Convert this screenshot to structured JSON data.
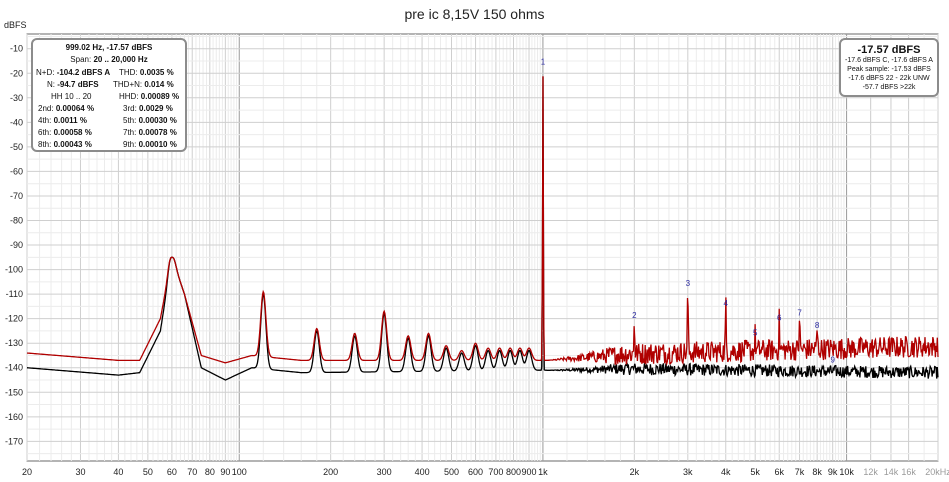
{
  "chart_data": {
    "type": "line",
    "title": "pre ic 8,15V 150 ohms",
    "ylabel": "dBFS",
    "x_scale": "log",
    "xlim": [
      20,
      20000
    ],
    "ylim": [
      -178,
      -4
    ],
    "y_ticks": [
      -10,
      -20,
      -30,
      -40,
      -50,
      -60,
      -70,
      -80,
      -90,
      -100,
      -110,
      -120,
      -130,
      -140,
      -150,
      -160,
      -170
    ],
    "x_ticks": [
      {
        "v": 20,
        "l": "20"
      },
      {
        "v": 30,
        "l": "30"
      },
      {
        "v": 40,
        "l": "40"
      },
      {
        "v": 50,
        "l": "50"
      },
      {
        "v": 60,
        "l": "60"
      },
      {
        "v": 70,
        "l": "70"
      },
      {
        "v": 80,
        "l": "80"
      },
      {
        "v": 90,
        "l": "90"
      },
      {
        "v": 100,
        "l": "100"
      },
      {
        "v": 200,
        "l": "200"
      },
      {
        "v": 300,
        "l": "300"
      },
      {
        "v": 400,
        "l": "400"
      },
      {
        "v": 500,
        "l": "500"
      },
      {
        "v": 600,
        "l": "600"
      },
      {
        "v": 700,
        "l": "700"
      },
      {
        "v": 800,
        "l": "800"
      },
      {
        "v": 900,
        "l": "900"
      },
      {
        "v": 1000,
        "l": "1k"
      },
      {
        "v": 2000,
        "l": "2k"
      },
      {
        "v": 3000,
        "l": "3k"
      },
      {
        "v": 4000,
        "l": "4k"
      },
      {
        "v": 5000,
        "l": "5k"
      },
      {
        "v": 6000,
        "l": "6k"
      },
      {
        "v": 7000,
        "l": "7k"
      },
      {
        "v": 8000,
        "l": "8k"
      },
      {
        "v": 9000,
        "l": "9k"
      },
      {
        "v": 10000,
        "l": "10k"
      },
      {
        "v": 12000,
        "l": "12k"
      },
      {
        "v": 14000,
        "l": "14k"
      },
      {
        "v": 16000,
        "l": "16k"
      },
      {
        "v": 20000,
        "l": "20kHz"
      }
    ],
    "series": [
      {
        "color": "#000000",
        "floor": [
          [
            20,
            -140
          ],
          [
            40,
            -143
          ],
          [
            47,
            -142
          ],
          [
            55,
            -125
          ],
          [
            60,
            -95
          ],
          [
            66,
            -110
          ],
          [
            75,
            -140
          ],
          [
            90,
            -145
          ],
          [
            110,
            -140
          ],
          [
            160,
            -142
          ],
          [
            1000,
            -141
          ],
          [
            20000,
            -143
          ]
        ],
        "peaks": [
          [
            60,
            -95
          ],
          [
            120,
            -110
          ],
          [
            180,
            -125
          ],
          [
            240,
            -127
          ],
          [
            300,
            -118
          ],
          [
            360,
            -128
          ],
          [
            420,
            -127
          ],
          [
            480,
            -132
          ],
          [
            540,
            -134
          ],
          [
            600,
            -131
          ],
          [
            660,
            -133
          ],
          [
            720,
            -133
          ],
          [
            780,
            -133
          ],
          [
            840,
            -133
          ],
          [
            900,
            -133
          ],
          [
            1000,
            -17.57
          ]
        ]
      },
      {
        "color": "#b00000",
        "floor": [
          [
            20,
            -134
          ],
          [
            40,
            -137
          ],
          [
            47,
            -137
          ],
          [
            55,
            -120
          ],
          [
            60,
            -95
          ],
          [
            66,
            -110
          ],
          [
            75,
            -135
          ],
          [
            90,
            -138
          ],
          [
            110,
            -135
          ],
          [
            160,
            -137
          ],
          [
            1000,
            -137
          ],
          [
            20000,
            -133
          ]
        ],
        "peaks": [
          [
            60,
            -95
          ],
          [
            120,
            -109
          ],
          [
            180,
            -124
          ],
          [
            240,
            -126
          ],
          [
            300,
            -117
          ],
          [
            360,
            -127
          ],
          [
            420,
            -126
          ],
          [
            480,
            -131
          ],
          [
            540,
            -133
          ],
          [
            600,
            -130
          ],
          [
            660,
            -132
          ],
          [
            720,
            -132
          ],
          [
            780,
            -132
          ],
          [
            840,
            -132
          ],
          [
            900,
            -132
          ],
          [
            1000,
            -17.57
          ],
          [
            2000,
            -121
          ],
          [
            3000,
            -108
          ],
          [
            4000,
            -116
          ],
          [
            5000,
            -128
          ],
          [
            6000,
            -122
          ],
          [
            7000,
            -120
          ],
          [
            8000,
            -125
          ],
          [
            9000,
            -139
          ]
        ]
      }
    ],
    "harmonic_markers": [
      {
        "n": "1",
        "f": 1000,
        "db": -17.57
      },
      {
        "n": "2",
        "f": 2000,
        "db": -121
      },
      {
        "n": "3",
        "f": 3000,
        "db": -108
      },
      {
        "n": "4",
        "f": 4000,
        "db": -116
      },
      {
        "n": "5",
        "f": 5000,
        "db": -128
      },
      {
        "n": "6",
        "f": 6000,
        "db": -122
      },
      {
        "n": "7",
        "f": 7000,
        "db": -120
      },
      {
        "n": "8",
        "f": 8000,
        "db": -125
      },
      {
        "n": "9",
        "f": 9000,
        "db": -139
      }
    ],
    "legend": "none"
  },
  "info": {
    "freq": "999.02 Hz, -17.57 dBFS",
    "span_label": "Span:",
    "span_value": "20 .. 20,000 Hz",
    "nd_label": "N+D:",
    "nd_value": "-104.2 dBFS A",
    "thd_label": "THD:",
    "thd_value": "0.0035 %",
    "n_label": "N:",
    "n_value": "-94.7 dBFS",
    "thdn_label": "THD+N:",
    "thdn_value": "0.014 %",
    "hh_label": "HH 10 .. 20",
    "hhd_label": "HHD:",
    "hhd_value": "0.00089 %",
    "h2_label": "2nd:",
    "h2_value": "0.00064 %",
    "h3_label": "3rd:",
    "h3_value": "0.0029 %",
    "h4_label": "4th:",
    "h4_value": "0.0011 %",
    "h5_label": "5th:",
    "h5_value": "0.00030 %",
    "h6_label": "6th:",
    "h6_value": "0.00058 %",
    "h7_label": "7th:",
    "h7_value": "0.00078 %",
    "h8_label": "8th:",
    "h8_value": "0.00043 %",
    "h9_label": "9th:",
    "h9_value": "0.00010 %"
  },
  "level": {
    "main": "-17.57 dBFS",
    "line1": "-17.6 dBFS C, -17.6 dBFS A",
    "line2": "Peak sample: -17.53 dBFS",
    "line3": "-17.6 dBFS 22 - 22k UNW",
    "line4": "-57.7 dBFS >22k"
  }
}
